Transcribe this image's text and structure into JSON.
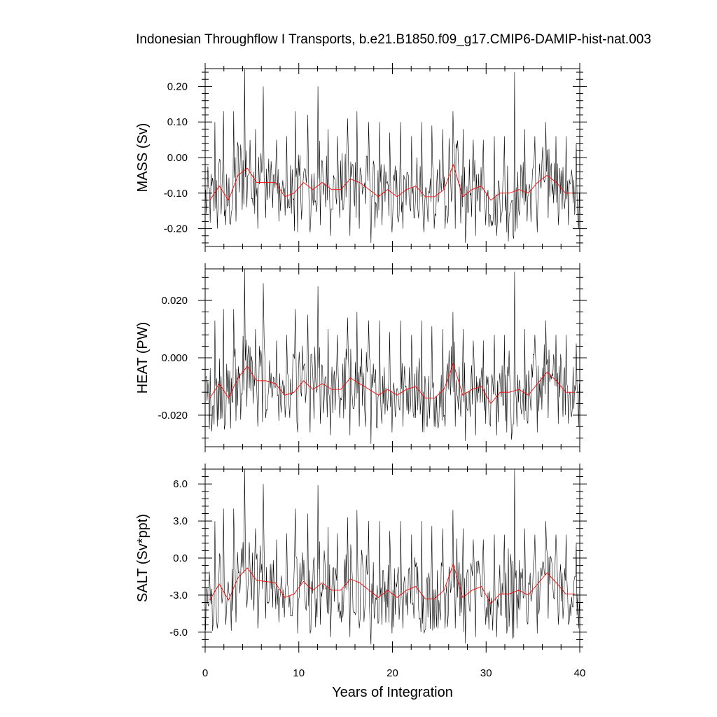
{
  "chart_data": {
    "type": "line",
    "title": "Indonesian Throughflow I Transports, b.e21.B1850.f09_g17.CMIP6-DAMIP-hist-nat.003",
    "xlabel": "Years of Integration",
    "xlim": [
      0,
      40
    ],
    "xticks": [
      0,
      10,
      20,
      30,
      40
    ],
    "xtick_labels": [
      "0",
      "10",
      "20",
      "30",
      "40"
    ],
    "grid": false,
    "legend": "none",
    "series_colors": {
      "monthly": "#000000",
      "annual": "#ff0000"
    },
    "panels": [
      {
        "ylabel": "MASS (Sv)",
        "ylim": [
          -0.25,
          0.25
        ],
        "yticks": [
          0.2,
          0.1,
          0.0,
          -0.1,
          -0.2
        ],
        "ytick_labels": [
          "0.20",
          "0.10",
          "0.00",
          "-0.10",
          "-0.20"
        ],
        "annual_x": [
          0.5,
          1.5,
          2.5,
          3.5,
          4.5,
          5.5,
          6.5,
          7.5,
          8.5,
          9.5,
          10.5,
          11.5,
          12.5,
          13.5,
          14.5,
          15.5,
          16.5,
          17.5,
          18.5,
          19.5,
          20.5,
          21.5,
          22.5,
          23.5,
          24.5,
          25.5,
          26.5,
          27.5,
          28.5,
          29.5,
          30.5,
          31.5,
          32.5,
          33.5,
          34.5,
          35.5,
          36.5,
          37.5,
          38.5,
          39.5
        ],
        "annual_y": [
          -0.12,
          -0.08,
          -0.12,
          -0.05,
          -0.03,
          -0.07,
          -0.07,
          -0.07,
          -0.11,
          -0.1,
          -0.07,
          -0.09,
          -0.07,
          -0.09,
          -0.09,
          -0.06,
          -0.07,
          -0.09,
          -0.11,
          -0.09,
          -0.11,
          -0.09,
          -0.08,
          -0.11,
          -0.11,
          -0.09,
          -0.02,
          -0.11,
          -0.09,
          -0.08,
          -0.12,
          -0.1,
          -0.1,
          -0.09,
          -0.1,
          -0.07,
          -0.05,
          -0.07,
          -0.1,
          -0.1
        ],
        "peaks_x": [
          1.0,
          1.9,
          3.0,
          4.2,
          5.3,
          6.2,
          7.6,
          8.7,
          9.6,
          10.9,
          12.0,
          13.1,
          14.1,
          15.2,
          16.2,
          17.4,
          18.6,
          19.7,
          20.8,
          22.0,
          23.1,
          24.2,
          25.3,
          26.4,
          27.5,
          28.6,
          29.7,
          30.8,
          31.9,
          33.0,
          34.1,
          35.2,
          36.3,
          37.4,
          38.5,
          39.6
        ],
        "peaks_y": [
          0.1,
          0.13,
          0.13,
          0.25,
          0.08,
          0.2,
          0.05,
          0.06,
          0.13,
          0.12,
          0.2,
          0.08,
          0.06,
          0.11,
          0.13,
          0.1,
          0.1,
          0.07,
          0.1,
          0.06,
          0.1,
          0.09,
          0.08,
          0.13,
          0.08,
          0.05,
          0.05,
          0.06,
          0.06,
          0.24,
          0.08,
          0.06,
          0.1,
          0.06,
          0.06,
          0.04
        ],
        "troughs_y": [
          -0.2,
          -0.19,
          -0.18,
          -0.14,
          -0.2,
          -0.17,
          -0.18,
          -0.14,
          -0.21,
          -0.21,
          -0.19,
          -0.22,
          -0.17,
          -0.22,
          -0.2,
          -0.24,
          -0.19,
          -0.21,
          -0.2,
          -0.17,
          -0.21,
          -0.2,
          -0.2,
          -0.2,
          -0.24,
          -0.22,
          -0.19,
          -0.22,
          -0.21,
          -0.2,
          -0.18,
          -0.21,
          -0.17,
          -0.19,
          -0.19,
          -0.2
        ]
      },
      {
        "ylabel": "HEAT (PW)",
        "ylim": [
          -0.031,
          0.031
        ],
        "yticks": [
          0.02,
          0.0,
          -0.02
        ],
        "ytick_labels": [
          "0.020",
          "0.000",
          "-0.020"
        ],
        "annual_x": [
          0.5,
          1.5,
          2.5,
          3.5,
          4.5,
          5.5,
          6.5,
          7.5,
          8.5,
          9.5,
          10.5,
          11.5,
          12.5,
          13.5,
          14.5,
          15.5,
          16.5,
          17.5,
          18.5,
          19.5,
          20.5,
          21.5,
          22.5,
          23.5,
          24.5,
          25.5,
          26.5,
          27.5,
          28.5,
          29.5,
          30.5,
          31.5,
          32.5,
          33.5,
          34.5,
          35.5,
          36.5,
          37.5,
          38.5,
          39.5
        ],
        "annual_y": [
          -0.014,
          -0.009,
          -0.014,
          -0.007,
          -0.003,
          -0.008,
          -0.008,
          -0.009,
          -0.013,
          -0.012,
          -0.008,
          -0.011,
          -0.009,
          -0.011,
          -0.011,
          -0.007,
          -0.009,
          -0.011,
          -0.013,
          -0.011,
          -0.013,
          -0.011,
          -0.01,
          -0.014,
          -0.014,
          -0.011,
          -0.002,
          -0.013,
          -0.011,
          -0.01,
          -0.016,
          -0.012,
          -0.012,
          -0.011,
          -0.013,
          -0.009,
          -0.005,
          -0.008,
          -0.012,
          -0.012
        ],
        "peaks_x": [
          1.0,
          1.9,
          3.0,
          4.2,
          5.3,
          6.2,
          7.6,
          8.7,
          9.6,
          10.9,
          12.0,
          13.1,
          14.1,
          15.2,
          16.2,
          17.4,
          18.6,
          19.7,
          20.8,
          22.0,
          23.1,
          24.2,
          25.3,
          26.4,
          27.5,
          28.6,
          29.7,
          30.8,
          31.9,
          33.0,
          34.1,
          35.2,
          36.3,
          37.4,
          38.5,
          39.6
        ],
        "peaks_y": [
          0.013,
          0.017,
          0.017,
          0.031,
          0.01,
          0.026,
          0.006,
          0.008,
          0.017,
          0.015,
          0.025,
          0.01,
          0.008,
          0.014,
          0.016,
          0.013,
          0.013,
          0.009,
          0.013,
          0.008,
          0.013,
          0.011,
          0.01,
          0.016,
          0.01,
          0.006,
          0.006,
          0.008,
          0.008,
          0.03,
          0.01,
          0.008,
          0.013,
          0.008,
          0.008,
          0.005
        ],
        "troughs_y": [
          -0.024,
          -0.023,
          -0.022,
          -0.017,
          -0.024,
          -0.021,
          -0.022,
          -0.017,
          -0.026,
          -0.026,
          -0.023,
          -0.027,
          -0.021,
          -0.027,
          -0.024,
          -0.03,
          -0.023,
          -0.026,
          -0.024,
          -0.021,
          -0.026,
          -0.024,
          -0.024,
          -0.024,
          -0.029,
          -0.027,
          -0.023,
          -0.027,
          -0.026,
          -0.024,
          -0.022,
          -0.026,
          -0.021,
          -0.023,
          -0.023,
          -0.024
        ]
      },
      {
        "ylabel": "SALT (Sv*ppt)",
        "ylim": [
          -7.2,
          7.2
        ],
        "yticks": [
          6.0,
          3.0,
          0.0,
          -3.0,
          -6.0
        ],
        "ytick_labels": [
          "6.0",
          "3.0",
          "0.0",
          "-3.0",
          "-6.0"
        ],
        "annual_x": [
          0.5,
          1.5,
          2.5,
          3.5,
          4.5,
          5.5,
          6.5,
          7.5,
          8.5,
          9.5,
          10.5,
          11.5,
          12.5,
          13.5,
          14.5,
          15.5,
          16.5,
          17.5,
          18.5,
          19.5,
          20.5,
          21.5,
          22.5,
          23.5,
          24.5,
          25.5,
          26.5,
          27.5,
          28.5,
          29.5,
          30.5,
          31.5,
          32.5,
          33.5,
          34.5,
          35.5,
          36.5,
          37.5,
          38.5,
          39.5
        ],
        "annual_y": [
          -3.4,
          -2.1,
          -3.4,
          -1.6,
          -0.8,
          -1.8,
          -1.9,
          -2.0,
          -3.2,
          -2.9,
          -1.9,
          -2.6,
          -2.0,
          -2.6,
          -2.6,
          -1.7,
          -2.0,
          -2.6,
          -3.2,
          -2.6,
          -3.2,
          -2.6,
          -2.3,
          -3.3,
          -3.3,
          -2.6,
          -0.5,
          -3.2,
          -2.6,
          -2.3,
          -3.7,
          -2.9,
          -2.9,
          -2.6,
          -3.0,
          -2.1,
          -1.2,
          -2.0,
          -2.9,
          -2.9
        ],
        "peaks_x": [
          1.0,
          1.9,
          3.0,
          4.2,
          5.3,
          6.2,
          7.6,
          8.7,
          9.6,
          10.9,
          12.0,
          13.1,
          14.1,
          15.2,
          16.2,
          17.4,
          18.6,
          19.7,
          20.8,
          22.0,
          23.1,
          24.2,
          25.3,
          26.4,
          27.5,
          28.6,
          29.7,
          30.8,
          31.9,
          33.0,
          34.1,
          35.2,
          36.3,
          37.4,
          38.5,
          39.6
        ],
        "peaks_y": [
          3.0,
          4.0,
          4.0,
          7.4,
          2.4,
          6.0,
          1.5,
          2.0,
          4.0,
          3.6,
          5.9,
          2.5,
          2.0,
          3.3,
          3.9,
          3.0,
          3.0,
          2.2,
          3.0,
          1.9,
          3.0,
          2.6,
          2.4,
          3.9,
          2.4,
          1.5,
          1.5,
          1.9,
          1.9,
          7.2,
          2.4,
          1.9,
          3.0,
          1.9,
          1.9,
          1.2
        ],
        "troughs_y": [
          -5.7,
          -5.4,
          -5.2,
          -4.0,
          -5.7,
          -4.9,
          -5.2,
          -4.0,
          -6.1,
          -6.1,
          -5.4,
          -6.4,
          -4.9,
          -6.4,
          -5.7,
          -7.0,
          -5.4,
          -6.1,
          -5.7,
          -4.9,
          -6.1,
          -5.7,
          -5.7,
          -5.7,
          -6.9,
          -6.4,
          -5.4,
          -6.4,
          -6.1,
          -5.7,
          -5.2,
          -6.1,
          -4.9,
          -5.4,
          -5.4,
          -5.7
        ]
      }
    ]
  }
}
